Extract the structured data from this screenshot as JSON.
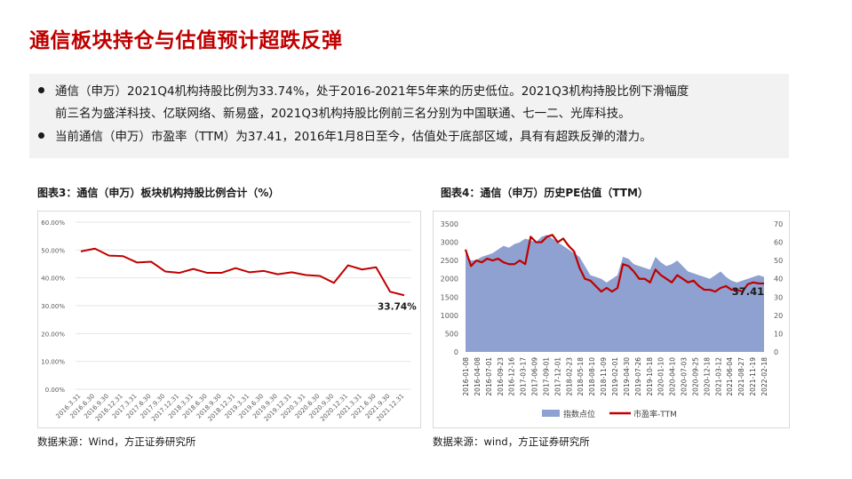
{
  "title": "通信板块持仓与估值预计超跌反弹",
  "summary": {
    "bullets": [
      {
        "line1": "通信（申万）2021Q4机构持股比例为33.74%，处于2016-2021年5年来的历史低位。2021Q3机构持股比例下滑幅度",
        "line2": "前三名为盛洋科技、亿联网络、新易盛，2021Q3机构持股比例前三名分别为中国联通、七一二、光库科技。"
      },
      {
        "line1": "当前通信（申万）市盈率（TTM）为37.41，2016年1月8日至今，估值处于底部区域，具有有超跌反弹的潜力。"
      }
    ]
  },
  "figures": {
    "left": {
      "title": "图表3：通信（申万）板块机构持股比例合计（%）",
      "source": "数据来源：Wind，方正证券研究所"
    },
    "right": {
      "title": "图表4：通信（申万）历史PE估值（TTM）",
      "source": "数据来源：wind，方正证券研究所"
    }
  },
  "colors": {
    "title_red": "#c00000",
    "line_red": "#c00000",
    "area_blue": "#8ea1d0",
    "grid": "#e6e6e6"
  },
  "chart_data": [
    {
      "type": "line",
      "title": "",
      "categories": [
        "2016.3.31",
        "2016.6.30",
        "2016.9.30",
        "2016.12.31",
        "2017.3.31",
        "2017.6.30",
        "2017.9.30",
        "2017.12.31",
        "2018.3.31",
        "2018.6.30",
        "2018.9.30",
        "2018.12.31",
        "2019.3.31",
        "2019.6.30",
        "2019.9.30",
        "2019.12.31",
        "2020.3.31",
        "2020.6.30",
        "2020.9.30",
        "2020.12.31",
        "2021.3.31",
        "2021.6.30",
        "2021.9.30",
        "2021.12.31"
      ],
      "series": [
        {
          "values": [
            49.5,
            50.5,
            48.0,
            47.8,
            45.5,
            45.8,
            42.3,
            41.8,
            43.2,
            41.8,
            41.8,
            43.5,
            42.0,
            42.5,
            41.3,
            42.0,
            41.0,
            40.7,
            38.2,
            44.5,
            43.0,
            43.8,
            35.0,
            33.74
          ]
        }
      ],
      "ylim": [
        0,
        60
      ],
      "yticks": [
        "0.00%",
        "10.00%",
        "20.00%",
        "30.00%",
        "40.00%",
        "50.00%",
        "60.00%"
      ],
      "annotation": "33.74%",
      "grid": true
    },
    {
      "type": "area",
      "title": "",
      "x_ticks": [
        "2016-01-08",
        "2016-04-08",
        "2016-07-01",
        "2016-09-23",
        "2016-12-16",
        "2017-03-17",
        "2017-06-09",
        "2017-09-01",
        "2017-12-01",
        "2018-02-23",
        "2018-05-18",
        "2018-08-10",
        "2018-11-09",
        "2019-02-01",
        "2019-04-30",
        "2019-07-26",
        "2019-10-18",
        "2020-01-10",
        "2020-04-10",
        "2020-07-03",
        "2020-09-25",
        "2020-12-18",
        "2021-03-12",
        "2021-06-04",
        "2021-08-27",
        "2021-11-19",
        "2022-02-18"
      ],
      "legend": [
        "指数点位",
        "市盈率-TTM"
      ],
      "legend_position": "bottom",
      "annotation": "37.41",
      "y_left": {
        "ylim": [
          0,
          3500
        ],
        "ticks": [
          "0",
          "500",
          "1000",
          "1500",
          "2000",
          "2500",
          "3000",
          "3500"
        ]
      },
      "y_right": {
        "ylim": [
          0,
          70
        ],
        "ticks": [
          "0",
          "10",
          "20",
          "30",
          "40",
          "50",
          "60",
          "70"
        ]
      },
      "series": [
        {
          "name": "指数点位",
          "axis": "left",
          "values": [
            2700,
            2500,
            2520,
            2600,
            2650,
            2700,
            2800,
            2900,
            2850,
            2950,
            3000,
            3100,
            3050,
            3000,
            3150,
            3200,
            3100,
            3000,
            2900,
            2800,
            2700,
            2600,
            2350,
            2100,
            2050,
            2000,
            1900,
            2000,
            2100,
            2600,
            2550,
            2400,
            2350,
            2300,
            2250,
            2600,
            2450,
            2350,
            2400,
            2500,
            2350,
            2200,
            2150,
            2100,
            2050,
            2000,
            2100,
            2200,
            2050,
            1950,
            1900,
            1950,
            2000,
            2050,
            2100,
            2050
          ]
        },
        {
          "name": "市盈率-TTM",
          "axis": "right",
          "values": [
            56,
            47,
            50,
            49,
            51,
            50,
            51,
            49,
            48,
            48,
            50,
            48,
            63,
            60,
            60,
            63,
            64,
            60,
            62,
            58,
            55,
            46,
            40,
            39,
            36,
            33,
            35,
            33,
            35,
            48,
            47,
            44,
            40,
            40,
            38,
            45,
            42,
            40,
            38,
            42,
            40,
            38,
            39,
            36,
            34,
            34,
            33,
            35,
            36,
            34,
            34,
            33,
            37,
            38,
            37.5,
            37.41
          ]
        }
      ]
    }
  ]
}
